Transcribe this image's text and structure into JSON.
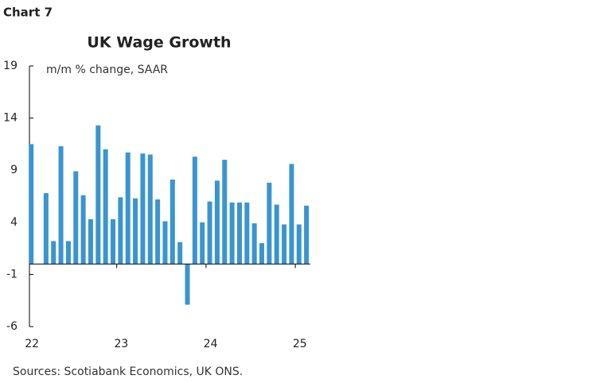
{
  "header": "Chart 7",
  "chart_data": {
    "type": "bar",
    "title": "UK Wage Growth",
    "subtitle": "m/m % change, SAAR",
    "categories": [
      "22",
      null,
      null,
      null,
      null,
      null,
      null,
      null,
      null,
      null,
      null,
      null,
      "23",
      null,
      null,
      null,
      null,
      null,
      null,
      null,
      null,
      null,
      null,
      null,
      "24",
      null,
      null,
      null,
      null,
      null,
      null,
      null,
      null,
      null,
      null,
      null,
      "25",
      null
    ],
    "values": [
      11.5,
      null,
      6.8,
      2.2,
      11.3,
      2.2,
      8.9,
      6.6,
      4.3,
      13.3,
      11.0,
      4.3,
      6.4,
      10.7,
      6.3,
      10.6,
      10.5,
      6.2,
      4.1,
      8.1,
      2.1,
      -3.9,
      10.3,
      4.0,
      6.0,
      8.0,
      10.0,
      5.9,
      5.9,
      5.9,
      3.9,
      2.0,
      7.8,
      5.7,
      3.8,
      9.6,
      3.8,
      5.6
    ],
    "color": "#3a95cf",
    "ylim": [
      -6,
      19
    ],
    "yticks": [
      -6,
      -1,
      4,
      9,
      14,
      19
    ]
  },
  "source": "Sources: Scotiabank Economics, UK ONS."
}
